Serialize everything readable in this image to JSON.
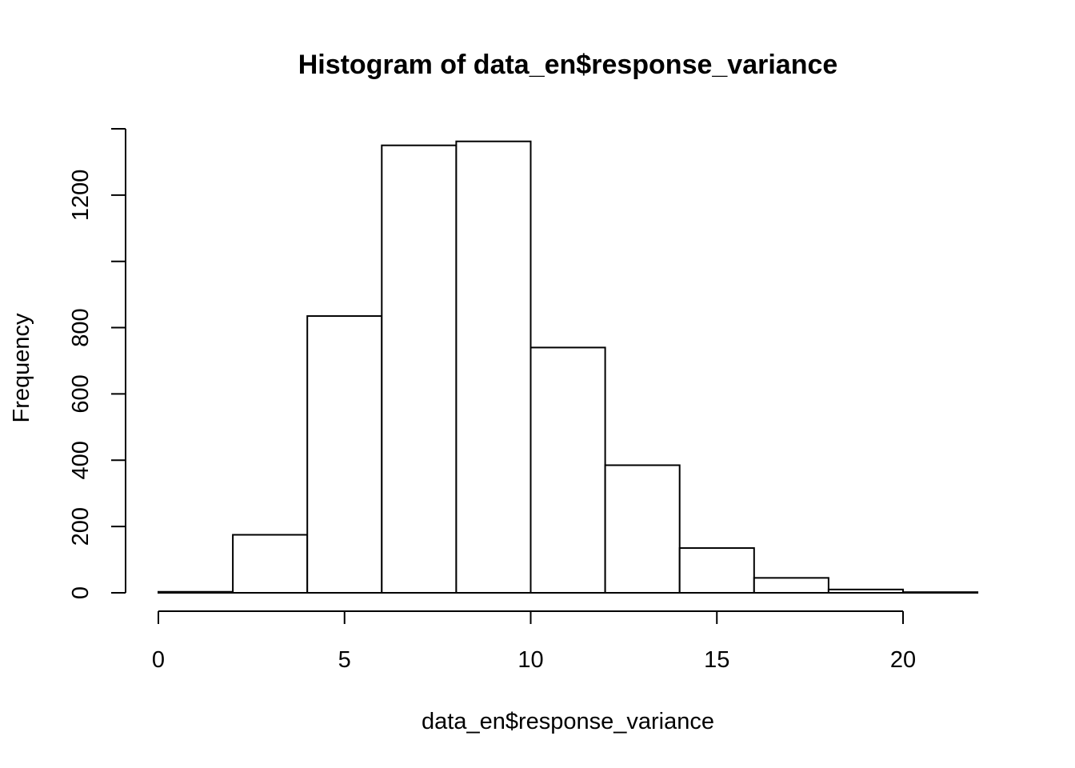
{
  "chart_data": {
    "type": "bar",
    "subtype": "histogram",
    "title": "Histogram of data_en$response_variance",
    "xlabel": "data_en$response_variance",
    "ylabel": "Frequency",
    "bins": [
      {
        "start": 0,
        "end": 2,
        "count": 3
      },
      {
        "start": 2,
        "end": 4,
        "count": 175
      },
      {
        "start": 4,
        "end": 6,
        "count": 835
      },
      {
        "start": 6,
        "end": 8,
        "count": 1350
      },
      {
        "start": 8,
        "end": 10,
        "count": 1362
      },
      {
        "start": 10,
        "end": 12,
        "count": 740
      },
      {
        "start": 12,
        "end": 14,
        "count": 385
      },
      {
        "start": 14,
        "end": 16,
        "count": 135
      },
      {
        "start": 16,
        "end": 18,
        "count": 45
      },
      {
        "start": 18,
        "end": 20,
        "count": 10
      },
      {
        "start": 20,
        "end": 22,
        "count": 2
      }
    ],
    "xlim": [
      0,
      22
    ],
    "ylim": [
      0,
      1400
    ],
    "x_ticks": [
      0,
      5,
      10,
      15,
      20
    ],
    "x_tick_labels": [
      "0",
      "5",
      "10",
      "15",
      "20"
    ],
    "y_ticks": [
      0,
      200,
      400,
      600,
      800,
      1000,
      1200,
      1400
    ],
    "y_tick_labels": [
      "0",
      "200",
      "400",
      "600",
      "800",
      "",
      "1200",
      ""
    ],
    "grid": false,
    "bar_fill": "#ffffff",
    "bar_stroke": "#000000"
  }
}
